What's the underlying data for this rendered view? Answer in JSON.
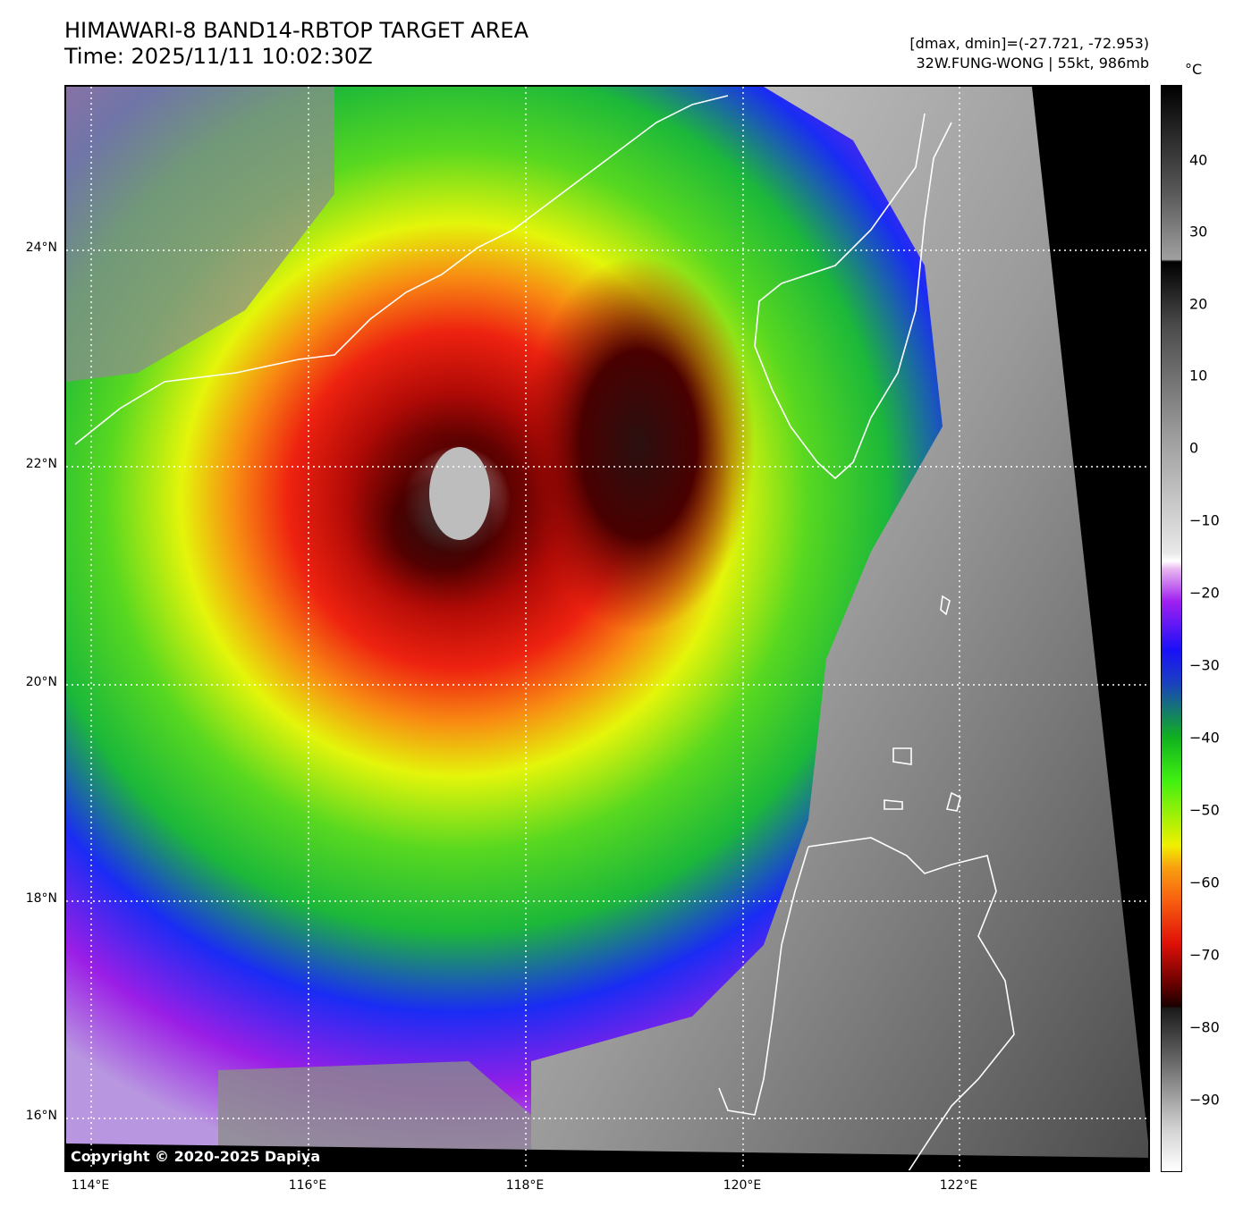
{
  "header": {
    "title_line1": "HIMAWARI-8 BAND14-RBTOP TARGET AREA",
    "title_line2": "Time: 2025/11/11 10:02:30Z",
    "range_line": "[dmax, dmin]=(-27.721, -72.953)",
    "storm_line": "32W.FUNG-WONG | 55kt, 986mb"
  },
  "map": {
    "copyright": "Copyright © 2020-2025 Dapiya",
    "lat_labels": [
      "24°N",
      "22°N",
      "20°N",
      "18°N",
      "16°N"
    ],
    "lon_labels": [
      "114°E",
      "116°E",
      "118°E",
      "120°E",
      "122°E"
    ]
  },
  "colorbar": {
    "unit": "°C",
    "ticks": [
      "40",
      "30",
      "20",
      "10",
      "0",
      "−10",
      "−20",
      "−30",
      "−40",
      "−50",
      "−60",
      "−70",
      "−80",
      "−90"
    ]
  },
  "colors": {
    "coastline": "#ffffff",
    "grid": "#ffffff",
    "eye": "#c0c0c0",
    "cdo": "#6b0000",
    "ring_red": "#e81b0e",
    "ring_orange": "#f88b12",
    "ring_yellow": "#e4f50a",
    "ring_green": "#1cd01c",
    "ring_blue": "#1a2cf4",
    "ring_violet": "#9b1ee6",
    "clear": "#a7a7a7"
  }
}
